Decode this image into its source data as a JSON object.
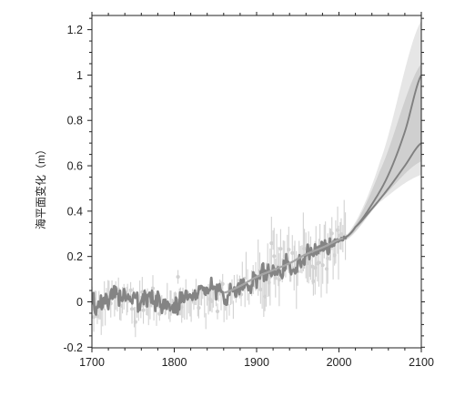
{
  "chart_data": {
    "type": "line",
    "ylabel": "海平面变化（m）",
    "xlim": [
      1700,
      2100
    ],
    "ylim": [
      -0.2,
      1.25
    ],
    "xticks": [
      1700,
      1800,
      1900,
      2000,
      2100
    ],
    "yticks": [
      -0.2,
      0,
      0.2,
      0.4,
      0.6,
      0.8,
      1,
      1.2
    ],
    "yticklabels": [
      "-0.2",
      "0",
      "0.2",
      "0.4",
      "0.6",
      "0.8",
      "1",
      "1.2"
    ],
    "grid": false,
    "colors": {
      "band_outer": "#e6e6e6",
      "band_inner": "#cfcfcf",
      "errorbars": "#d2d2d2",
      "observed": "#848484",
      "projection": "#808080",
      "fit": "#a6a6a6",
      "axis": "#222222"
    },
    "series": [
      {
        "kind": "projection_band_outer",
        "x": [
          2008,
          2050,
          2100
        ],
        "low": [
          0.27,
          0.44,
          0.56
        ],
        "high": [
          0.29,
          0.62,
          1.24
        ]
      },
      {
        "kind": "projection_band_inner",
        "x": [
          2008,
          2050,
          2100
        ],
        "low": [
          0.275,
          0.45,
          0.62
        ],
        "high": [
          0.285,
          0.58,
          1.05
        ]
      },
      {
        "kind": "projection_upper",
        "x": [
          2008,
          2020,
          2040,
          2060,
          2080,
          2100
        ],
        "y": [
          0.285,
          0.33,
          0.43,
          0.56,
          0.75,
          1.0
        ]
      },
      {
        "kind": "projection_lower",
        "x": [
          2008,
          2020,
          2040,
          2060,
          2080,
          2100
        ],
        "y": [
          0.285,
          0.33,
          0.41,
          0.5,
          0.6,
          0.7
        ]
      },
      {
        "kind": "fitted_line",
        "x": [
          1860,
          1880,
          1900,
          1920,
          1940,
          1960,
          1980,
          2005
        ],
        "y": [
          0.04,
          0.07,
          0.11,
          0.14,
          0.17,
          0.21,
          0.24,
          0.28
        ]
      },
      {
        "kind": "observed_record_knots",
        "x": [
          1700,
          1730,
          1760,
          1790,
          1820,
          1850,
          1860,
          1870,
          1880,
          1890,
          1900,
          1910,
          1920,
          1930,
          1940,
          1950,
          1960,
          1970,
          1980,
          1990,
          2000,
          2008
        ],
        "y": [
          0.0,
          0.01,
          0.0,
          0.0,
          0.02,
          0.04,
          0.03,
          0.04,
          0.06,
          0.08,
          0.11,
          0.11,
          0.13,
          0.13,
          0.15,
          0.18,
          0.2,
          0.22,
          0.24,
          0.25,
          0.27,
          0.28
        ]
      },
      {
        "kind": "error_bar_cloud",
        "x_range": [
          1700,
          2008
        ],
        "y_trend_knots": {
          "x": [
            1700,
            1800,
            1860,
            1900,
            1920,
            1940,
            1960,
            1980,
            2008
          ],
          "y": [
            0.0,
            0.0,
            0.02,
            0.09,
            0.12,
            0.15,
            0.19,
            0.22,
            0.27
          ]
        }
      }
    ]
  }
}
